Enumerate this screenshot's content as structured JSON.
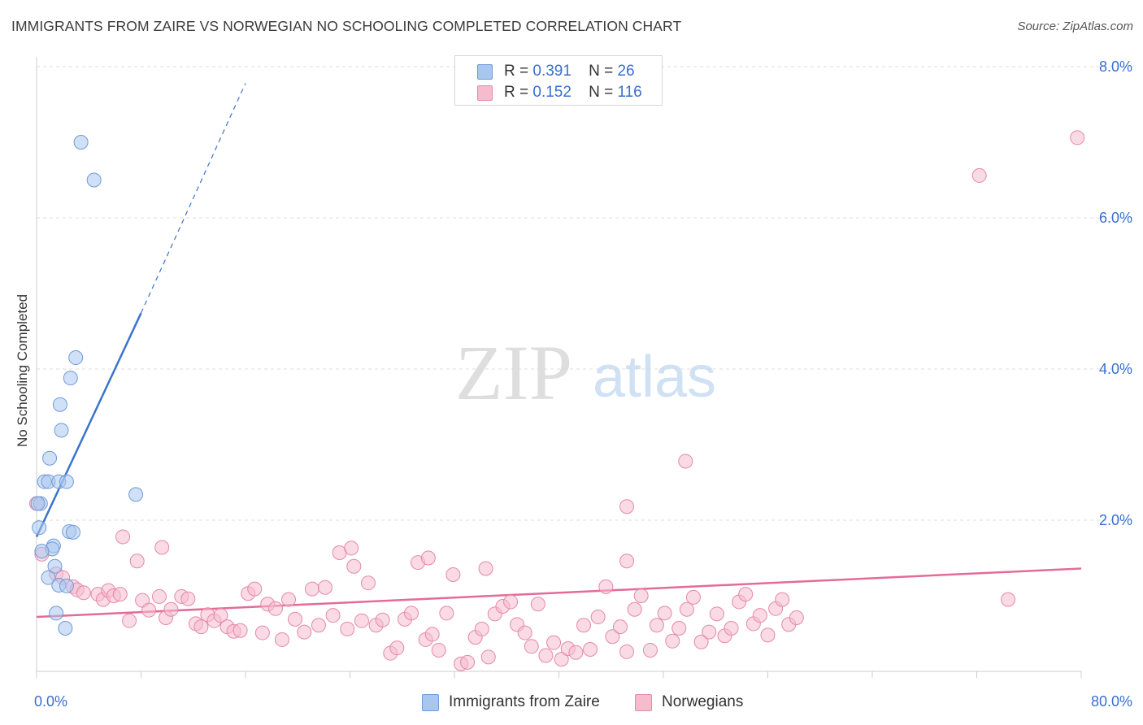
{
  "title": "IMMIGRANTS FROM ZAIRE VS NORWEGIAN NO SCHOOLING COMPLETED CORRELATION CHART",
  "source": "Source: ZipAtlas.com",
  "watermark": {
    "zip": "ZIP",
    "atlas": "atlas"
  },
  "legend": {
    "r_label": "R =",
    "n_label": "N =",
    "entries": [
      {
        "name": "Immigrants from Zaire",
        "r": "0.391",
        "n": "26",
        "color": "#a9c6ee",
        "edge": "#6f9bd8"
      },
      {
        "name": "Norwegians",
        "r": "0.152",
        "n": "116",
        "color": "#f6bccd",
        "edge": "#e48aa8"
      }
    ]
  },
  "chart_data": {
    "type": "scatter",
    "title": "IMMIGRANTS FROM ZAIRE VS NORWEGIAN NO SCHOOLING COMPLETED CORRELATION CHART",
    "xlabel": "",
    "ylabel": "No Schooling Completed",
    "xlim": [
      0,
      80
    ],
    "ylim": [
      0,
      8
    ],
    "x_tick_labels": [
      "0.0%",
      "80.0%"
    ],
    "y_ticks": [
      2,
      4,
      6,
      8
    ],
    "y_tick_labels": [
      "2.0%",
      "4.0%",
      "6.0%",
      "8.0%"
    ],
    "colors": {
      "zaire": "#3a74cc",
      "norwegians": "#e46b98",
      "tick_text": "#3a6fce"
    },
    "series": [
      {
        "name": "Immigrants from Zaire",
        "points": [
          [
            3.4,
            7.0
          ],
          [
            4.4,
            6.5
          ],
          [
            3.0,
            4.15
          ],
          [
            2.6,
            3.88
          ],
          [
            1.8,
            3.53
          ],
          [
            1.9,
            3.19
          ],
          [
            1.0,
            2.82
          ],
          [
            0.6,
            2.51
          ],
          [
            0.9,
            2.51
          ],
          [
            1.7,
            2.51
          ],
          [
            2.3,
            2.51
          ],
          [
            7.6,
            2.34
          ],
          [
            0.3,
            2.22
          ],
          [
            0.1,
            2.22
          ],
          [
            0.2,
            1.9
          ],
          [
            2.5,
            1.85
          ],
          [
            2.8,
            1.84
          ],
          [
            1.3,
            1.66
          ],
          [
            1.2,
            1.62
          ],
          [
            0.4,
            1.59
          ],
          [
            1.4,
            1.39
          ],
          [
            0.9,
            1.24
          ],
          [
            1.7,
            1.14
          ],
          [
            2.3,
            1.13
          ],
          [
            1.5,
            0.77
          ],
          [
            2.2,
            0.57
          ]
        ],
        "trend_solid": [
          [
            0.0,
            1.78
          ],
          [
            8.0,
            4.74
          ]
        ],
        "trend_dashed": [
          [
            8.0,
            4.74
          ],
          [
            16.0,
            7.78
          ]
        ]
      },
      {
        "name": "Norwegians",
        "points": [
          [
            0.0,
            2.22
          ],
          [
            0.4,
            1.55
          ],
          [
            1.5,
            1.29
          ],
          [
            2.0,
            1.24
          ],
          [
            2.8,
            1.12
          ],
          [
            3.1,
            1.08
          ],
          [
            3.6,
            1.04
          ],
          [
            4.7,
            1.02
          ],
          [
            5.1,
            0.95
          ],
          [
            5.5,
            1.07
          ],
          [
            5.9,
            1.0
          ],
          [
            6.4,
            1.02
          ],
          [
            7.1,
            0.67
          ],
          [
            8.1,
            0.94
          ],
          [
            8.6,
            0.81
          ],
          [
            9.4,
            0.99
          ],
          [
            9.9,
            0.71
          ],
          [
            10.3,
            0.82
          ],
          [
            11.1,
            0.99
          ],
          [
            11.6,
            0.96
          ],
          [
            12.2,
            0.63
          ],
          [
            12.6,
            0.59
          ],
          [
            13.1,
            0.75
          ],
          [
            13.6,
            0.67
          ],
          [
            14.1,
            0.74
          ],
          [
            14.6,
            0.59
          ],
          [
            15.1,
            0.53
          ],
          [
            15.6,
            0.54
          ],
          [
            16.2,
            1.03
          ],
          [
            16.7,
            1.09
          ],
          [
            17.3,
            0.51
          ],
          [
            17.7,
            0.89
          ],
          [
            18.3,
            0.83
          ],
          [
            18.8,
            0.42
          ],
          [
            19.3,
            0.95
          ],
          [
            19.8,
            0.69
          ],
          [
            20.5,
            0.52
          ],
          [
            21.1,
            1.09
          ],
          [
            21.6,
            0.61
          ],
          [
            22.1,
            1.11
          ],
          [
            22.7,
            0.74
          ],
          [
            23.2,
            1.57
          ],
          [
            23.8,
            0.56
          ],
          [
            24.3,
            1.39
          ],
          [
            24.9,
            0.67
          ],
          [
            25.4,
            1.17
          ],
          [
            26.0,
            0.61
          ],
          [
            26.5,
            0.68
          ],
          [
            27.1,
            0.24
          ],
          [
            27.6,
            0.31
          ],
          [
            28.2,
            0.69
          ],
          [
            28.7,
            0.77
          ],
          [
            29.2,
            1.44
          ],
          [
            29.8,
            0.42
          ],
          [
            30.3,
            0.49
          ],
          [
            30.8,
            0.28
          ],
          [
            31.4,
            0.77
          ],
          [
            31.9,
            1.28
          ],
          [
            32.5,
            0.1
          ],
          [
            33.0,
            0.12
          ],
          [
            33.6,
            0.45
          ],
          [
            34.1,
            0.56
          ],
          [
            34.6,
            0.19
          ],
          [
            35.1,
            0.76
          ],
          [
            35.7,
            0.86
          ],
          [
            36.3,
            0.92
          ],
          [
            36.8,
            0.62
          ],
          [
            37.4,
            0.51
          ],
          [
            37.9,
            0.33
          ],
          [
            38.4,
            0.89
          ],
          [
            39.0,
            0.21
          ],
          [
            39.6,
            0.38
          ],
          [
            40.2,
            0.16
          ],
          [
            40.7,
            0.3
          ],
          [
            41.3,
            0.25
          ],
          [
            41.9,
            0.61
          ],
          [
            42.4,
            0.29
          ],
          [
            43.0,
            0.72
          ],
          [
            43.6,
            1.12
          ],
          [
            44.1,
            0.46
          ],
          [
            44.7,
            0.59
          ],
          [
            45.2,
            0.26
          ],
          [
            45.8,
            0.82
          ],
          [
            46.3,
            1.0
          ],
          [
            47.0,
            0.28
          ],
          [
            47.5,
            0.61
          ],
          [
            48.1,
            0.77
          ],
          [
            48.7,
            0.4
          ],
          [
            49.2,
            0.57
          ],
          [
            49.8,
            0.82
          ],
          [
            50.3,
            0.98
          ],
          [
            50.9,
            0.39
          ],
          [
            51.5,
            0.52
          ],
          [
            52.1,
            0.76
          ],
          [
            52.7,
            0.47
          ],
          [
            53.2,
            0.57
          ],
          [
            53.8,
            0.92
          ],
          [
            54.3,
            1.02
          ],
          [
            54.9,
            0.63
          ],
          [
            55.4,
            0.74
          ],
          [
            56.0,
            0.48
          ],
          [
            56.6,
            0.83
          ],
          [
            57.1,
            0.95
          ],
          [
            57.6,
            0.62
          ],
          [
            58.2,
            0.71
          ],
          [
            45.2,
            2.18
          ],
          [
            45.2,
            1.46
          ],
          [
            49.7,
            2.78
          ],
          [
            72.2,
            6.56
          ],
          [
            79.7,
            7.06
          ],
          [
            74.4,
            0.95
          ],
          [
            6.6,
            1.78
          ],
          [
            9.6,
            1.64
          ],
          [
            7.7,
            1.46
          ],
          [
            24.1,
            1.63
          ],
          [
            30.0,
            1.5
          ],
          [
            34.4,
            1.36
          ]
        ],
        "trend": [
          [
            0.0,
            0.72
          ],
          [
            80.0,
            1.36
          ]
        ]
      }
    ]
  }
}
